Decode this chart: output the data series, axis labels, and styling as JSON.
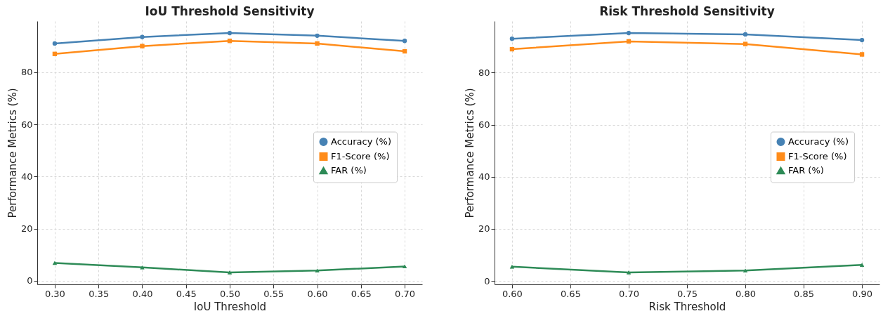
{
  "chart_data": [
    {
      "type": "line",
      "title": "IoU Threshold Sensitivity",
      "xlabel": "IoU Threshold",
      "ylabel": "Performance Metrics (%)",
      "x": [
        0.3,
        0.4,
        0.5,
        0.6,
        0.7
      ],
      "series": [
        {
          "name": "Accuracy (%)",
          "color": "#4682b4",
          "marker": "circle",
          "values": [
            91,
            93.5,
            95,
            94,
            92
          ]
        },
        {
          "name": "F1-Score (%)",
          "color": "#ff8c1a",
          "marker": "square",
          "values": [
            87,
            90,
            92,
            91,
            88
          ]
        },
        {
          "name": "FAR (%)",
          "color": "#2e8b57",
          "marker": "triangle",
          "values": [
            6.8,
            5.1,
            3.2,
            3.9,
            5.5
          ]
        }
      ],
      "xlim": [
        0.28,
        0.72
      ],
      "xticks": [
        {
          "value": 0.3,
          "label": "0.30"
        },
        0.35,
        {
          "value": 0.4,
          "label": "0.40"
        },
        0.45,
        {
          "value": 0.5,
          "label": "0.50"
        },
        0.55,
        {
          "value": 0.6,
          "label": "0.60"
        },
        0.65,
        {
          "value": 0.7,
          "label": "0.70"
        }
      ],
      "ylim": [
        -1.4,
        99.6
      ],
      "yticks": [
        0,
        20,
        40,
        60,
        80
      ],
      "grid": true,
      "legend": "right"
    },
    {
      "type": "line",
      "title": "Risk Threshold Sensitivity",
      "xlabel": "Risk Threshold",
      "ylabel": "Performance Metrics (%)",
      "x": [
        0.6,
        0.7,
        0.8,
        0.9
      ],
      "series": [
        {
          "name": "Accuracy (%)",
          "color": "#4682b4",
          "marker": "circle",
          "values": [
            93,
            95.2,
            94.7,
            92.5
          ]
        },
        {
          "name": "F1-Score (%)",
          "color": "#ff8c1a",
          "marker": "square",
          "values": [
            89,
            92,
            91,
            87
          ]
        },
        {
          "name": "FAR (%)",
          "color": "#2e8b57",
          "marker": "triangle",
          "values": [
            5.5,
            3.3,
            4,
            6.2
          ]
        }
      ],
      "xlim": [
        0.585,
        0.915
      ],
      "xticks": [
        {
          "value": 0.6,
          "label": "0.60"
        },
        0.65,
        {
          "value": 0.7,
          "label": "0.70"
        },
        0.75,
        {
          "value": 0.8,
          "label": "0.80"
        },
        0.85,
        {
          "value": 0.9,
          "label": "0.90"
        }
      ],
      "ylim": [
        -1.3,
        99.8
      ],
      "yticks": [
        0,
        20,
        40,
        60,
        80
      ],
      "grid": true,
      "legend": "right"
    }
  ]
}
